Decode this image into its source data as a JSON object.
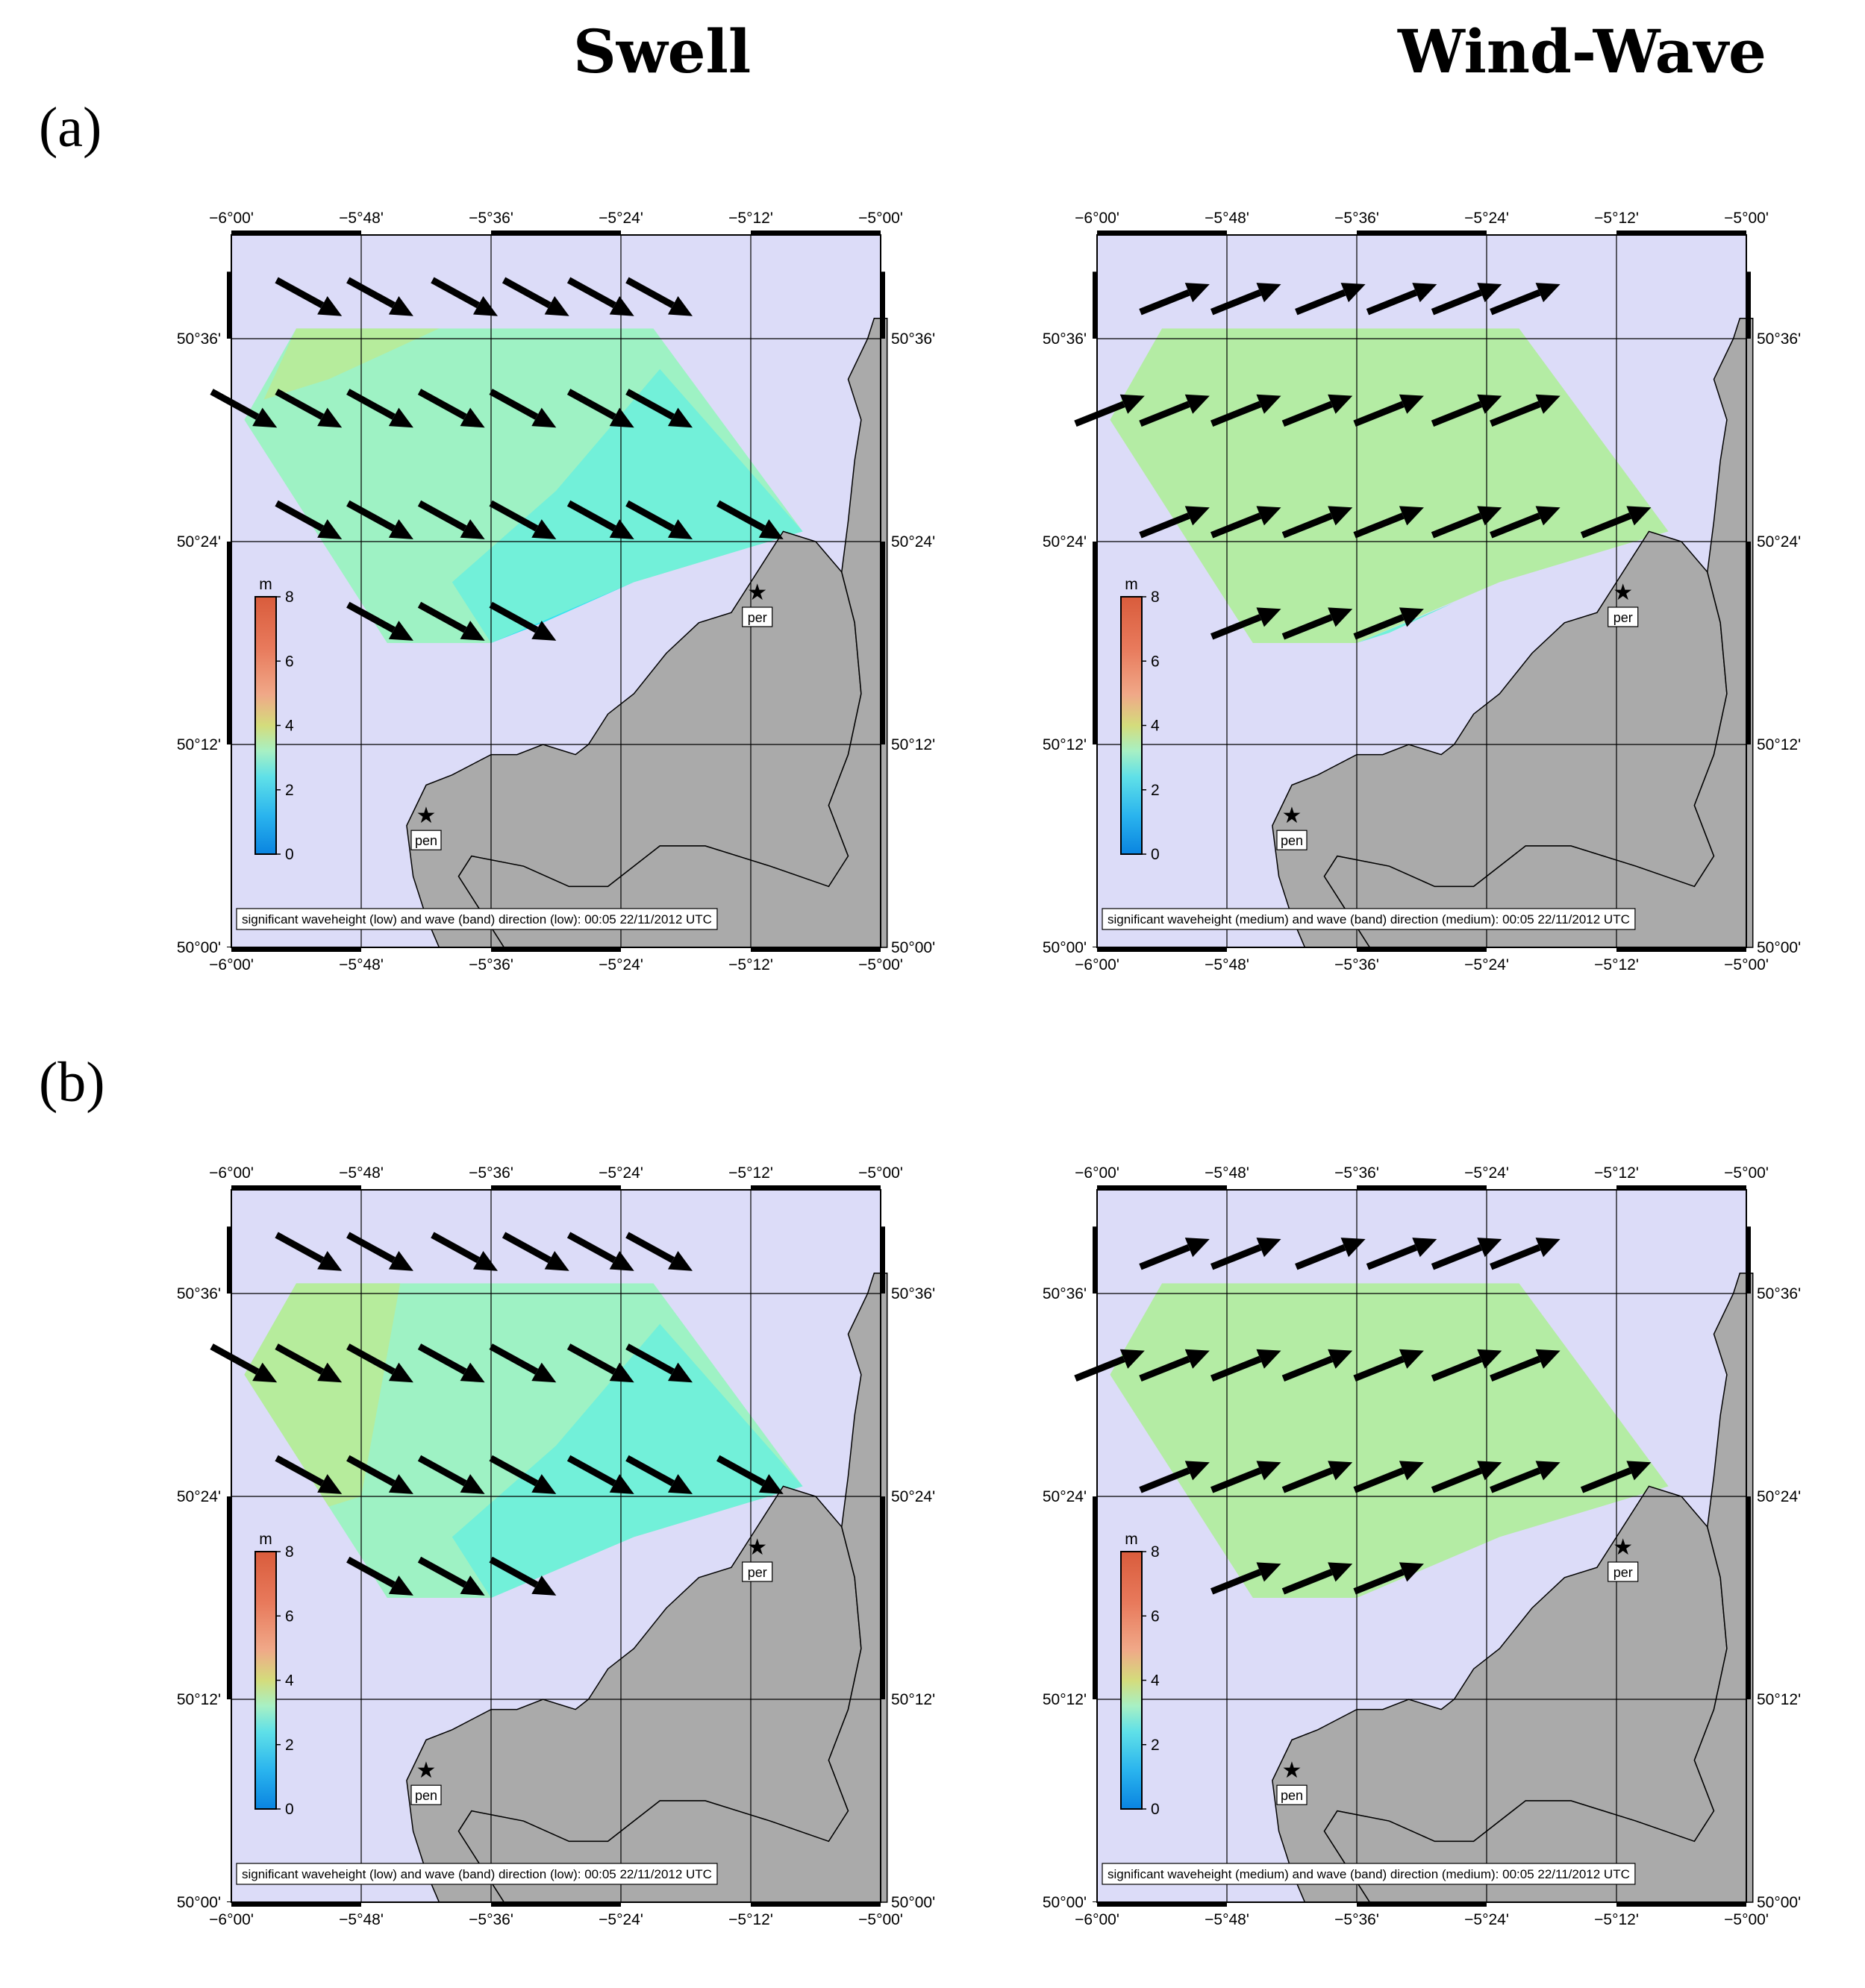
{
  "headers": {
    "left": "Swell",
    "right": "Wind-Wave"
  },
  "row_labels": [
    "(a)",
    "(b)"
  ],
  "colors": {
    "sea": "#dcdcf8",
    "land": "#aaaaaa",
    "arrow": "#000000",
    "swell_fill": "#9ef2c4",
    "swell_fill_dark": "#72f0d9",
    "swell_fill_cyan": "#34e4ee",
    "swell_fill_yellow": "#b6ec9c",
    "windwave_fill": "#b4eca4"
  },
  "map": {
    "lon_ticks": [
      "−6°00'",
      "−5°48'",
      "−5°36'",
      "−5°24'",
      "−5°12'",
      "−5°00'"
    ],
    "lat_ticks": [
      "50°36'",
      "50°24'",
      "50°12'",
      "50°00'"
    ],
    "markers": [
      {
        "label": "per",
        "lon": -5.19,
        "lat": 50.35
      },
      {
        "label": "pen",
        "lon": -5.7,
        "lat": 50.13
      }
    ],
    "colorbar": {
      "unit": "m",
      "ticks": [
        "8",
        "6",
        "4",
        "2",
        "0"
      ],
      "range": [
        0,
        8
      ]
    }
  },
  "panels": [
    {
      "id": "a-swell",
      "row": "(a)",
      "column": "Swell",
      "caption": "significant waveheight (low) and wave (band) direction (low): 00:05 22/11/2012 UTC",
      "arrow_direction": "to-southeast",
      "typical_height_m": 2.5
    },
    {
      "id": "a-windwave",
      "row": "(a)",
      "column": "Wind-Wave",
      "caption": "significant waveheight (medium) and wave (band) direction (medium): 00:05 22/11/2012 UTC",
      "arrow_direction": "to-northeast",
      "typical_height_m": 3.5
    },
    {
      "id": "b-swell",
      "row": "(b)",
      "column": "Swell",
      "caption": "significant waveheight (low) and wave (band) direction (low): 00:05 22/11/2012 UTC",
      "arrow_direction": "to-southeast",
      "typical_height_m": 3.0
    },
    {
      "id": "b-windwave",
      "row": "(b)",
      "column": "Wind-Wave",
      "caption": "significant waveheight (medium) and wave (band) direction (medium): 00:05 22/11/2012 UTC",
      "arrow_direction": "to-northeast",
      "typical_height_m": 3.5
    }
  ]
}
